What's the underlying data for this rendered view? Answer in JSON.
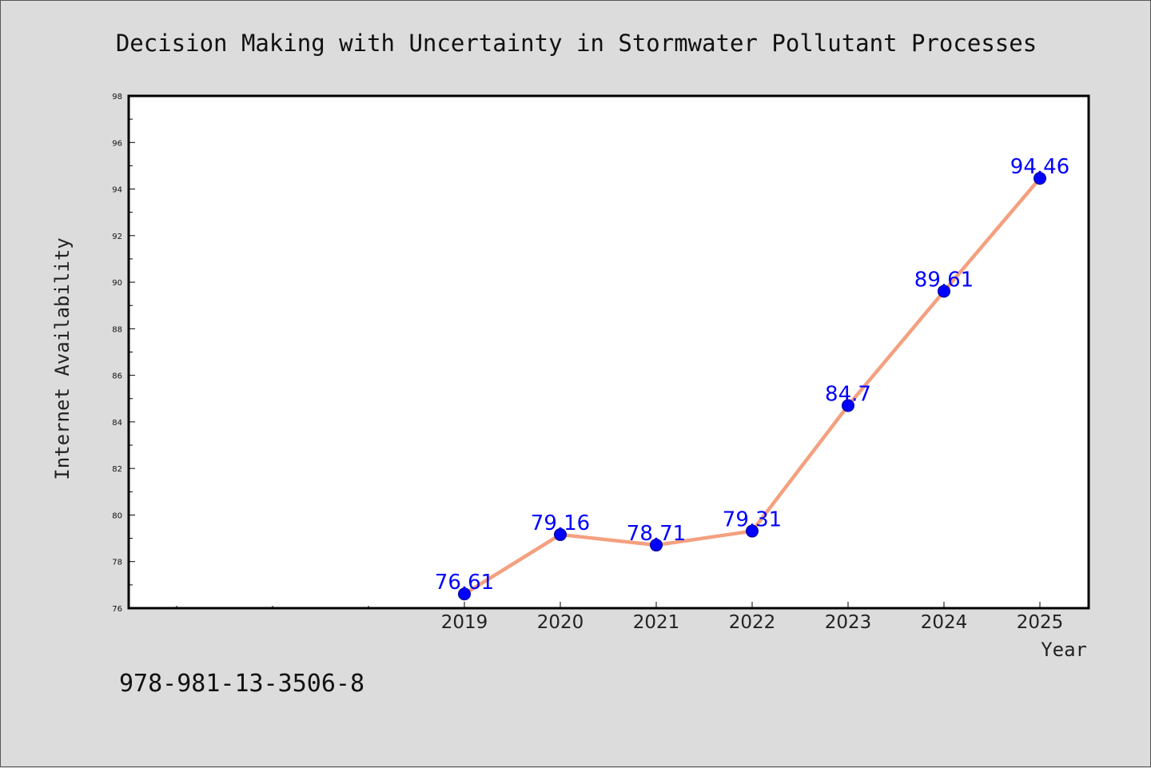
{
  "chart_data": {
    "type": "line",
    "title": "Decision Making with Uncertainty in Stormwater Pollutant Processes",
    "xlabel": "Year",
    "ylabel": "Internet Availability",
    "categories": [
      "2019",
      "2020",
      "2021",
      "2022",
      "2023",
      "2024",
      "2025"
    ],
    "values": [
      76.61,
      79.16,
      78.71,
      79.31,
      84.7,
      89.61,
      94.46
    ],
    "data_labels": [
      "76.61",
      "79.16",
      "78.71",
      "79.31",
      "84.7",
      "89.61",
      "94.46"
    ],
    "ylim": [
      76,
      98
    ],
    "yticks": [
      "76",
      "78",
      "80",
      "82",
      "84",
      "86",
      "88",
      "90",
      "92",
      "94",
      "96",
      "98"
    ],
    "grid": false,
    "legend": "none",
    "line_color": "#f4a07f",
    "marker_color": "#0000ff",
    "label_color": "#0000ff"
  },
  "footer": {
    "isbn": "978-981-13-3506-8"
  }
}
